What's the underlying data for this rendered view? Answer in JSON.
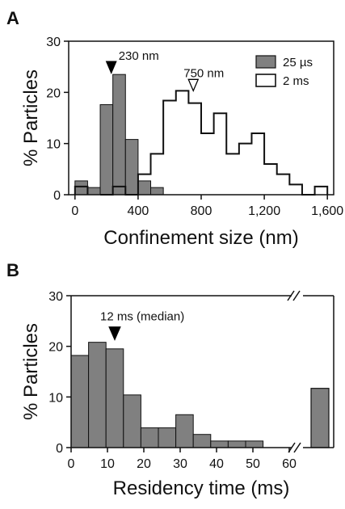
{
  "chart_data": [
    {
      "panel": "A",
      "type": "bar",
      "xlabel": "Confinement size (nm)",
      "ylabel": "% Particles",
      "xlim": [
        -40,
        1640
      ],
      "ylim": [
        0,
        30
      ],
      "xticks": [
        "0",
        "400",
        "800",
        "1,200",
        "1,600"
      ],
      "xtick_values": [
        0,
        400,
        800,
        1200,
        1600
      ],
      "yticks": [
        "0",
        "10",
        "20",
        "30"
      ],
      "ytick_values": [
        0,
        10,
        20,
        30
      ],
      "bin_width": 80,
      "legend_position": "top-right",
      "series": [
        {
          "name": "25 µs",
          "style": "filled",
          "color": "#808080",
          "bins": [
            {
              "x": 0,
              "y": 2.7
            },
            {
              "x": 80,
              "y": 1.4
            },
            {
              "x": 160,
              "y": 17.6
            },
            {
              "x": 240,
              "y": 23.5
            },
            {
              "x": 320,
              "y": 10.8
            },
            {
              "x": 400,
              "y": 2.7
            },
            {
              "x": 480,
              "y": 1.4
            }
          ]
        },
        {
          "name": "2 ms",
          "style": "outline",
          "color": "#000000",
          "bins": [
            {
              "x": 0,
              "y": 1.6
            },
            {
              "x": 160,
              "y": 0
            },
            {
              "x": 240,
              "y": 1.6
            },
            {
              "x": 320,
              "y": 0
            },
            {
              "x": 400,
              "y": 4.0
            },
            {
              "x": 480,
              "y": 8.0
            },
            {
              "x": 560,
              "y": 18.4
            },
            {
              "x": 640,
              "y": 20.3
            },
            {
              "x": 720,
              "y": 17.9
            },
            {
              "x": 800,
              "y": 12.0
            },
            {
              "x": 880,
              "y": 15.9
            },
            {
              "x": 960,
              "y": 8.0
            },
            {
              "x": 1040,
              "y": 10.0
            },
            {
              "x": 1120,
              "y": 12.0
            },
            {
              "x": 1200,
              "y": 6.0
            },
            {
              "x": 1280,
              "y": 4.0
            },
            {
              "x": 1360,
              "y": 2.0
            },
            {
              "x": 1440,
              "y": 0
            },
            {
              "x": 1520,
              "y": 1.6
            }
          ]
        }
      ],
      "annotations": [
        {
          "text": "230 nm",
          "x": 230,
          "y": 23.5,
          "marker": "filled-triangle"
        },
        {
          "text": "750 nm",
          "x": 750,
          "y": 20.0,
          "marker": "open-triangle"
        }
      ]
    },
    {
      "panel": "B",
      "type": "bar",
      "xlabel": "Residency time (ms)",
      "ylabel": "% Particles",
      "xlim": [
        0,
        66
      ],
      "ylim": [
        0,
        30
      ],
      "axis_break": true,
      "xticks": [
        "0",
        "10",
        "20",
        "30",
        "40",
        "50",
        "60"
      ],
      "xtick_values": [
        0,
        10,
        20,
        30,
        40,
        50,
        60
      ],
      "yticks": [
        "0",
        "10",
        "20",
        "30"
      ],
      "ytick_values": [
        0,
        10,
        20,
        30
      ],
      "bin_width": 4.8,
      "series": [
        {
          "name": "",
          "style": "filled",
          "color": "#808080",
          "bins": [
            {
              "x": 0,
              "y": 18.2
            },
            {
              "x": 4.8,
              "y": 20.8
            },
            {
              "x": 9.6,
              "y": 19.5
            },
            {
              "x": 14.4,
              "y": 10.4
            },
            {
              "x": 19.2,
              "y": 3.9
            },
            {
              "x": 24.0,
              "y": 3.9
            },
            {
              "x": 28.8,
              "y": 6.5
            },
            {
              "x": 33.6,
              "y": 2.6
            },
            {
              "x": 38.4,
              "y": 1.3
            },
            {
              "x": 43.2,
              "y": 1.3
            },
            {
              "x": 48.0,
              "y": 1.3
            }
          ],
          "overflow_bar": {
            "y": 11.7
          }
        }
      ],
      "annotations": [
        {
          "text": "12 ms (median)",
          "x": 12,
          "y": 20.8,
          "marker": "filled-triangle"
        }
      ]
    }
  ],
  "panels": {
    "a": {
      "label": "A"
    },
    "b": {
      "label": "B"
    }
  }
}
